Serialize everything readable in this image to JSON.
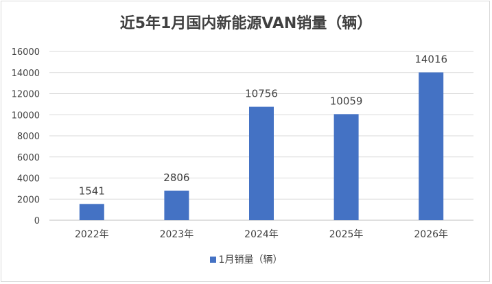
{
  "chart_data": {
    "type": "bar",
    "title": "近5年1月国内新能源VAN销量（辆）",
    "categories": [
      "2022年",
      "2023年",
      "2024年",
      "2025年",
      "2026年"
    ],
    "series": [
      {
        "name": "1月销量（辆）",
        "values": [
          1541,
          2806,
          10756,
          10059,
          14016
        ]
      }
    ],
    "data_labels": [
      "1541",
      "2806",
      "10756",
      "10059",
      "14016"
    ],
    "yticks": [
      0,
      2000,
      4000,
      6000,
      8000,
      10000,
      12000,
      14000,
      16000
    ],
    "ylim": [
      0,
      16000
    ],
    "xlabel": "",
    "ylabel": "",
    "grid": true,
    "legend_position": "bottom",
    "bar_color": "#4472c4"
  }
}
